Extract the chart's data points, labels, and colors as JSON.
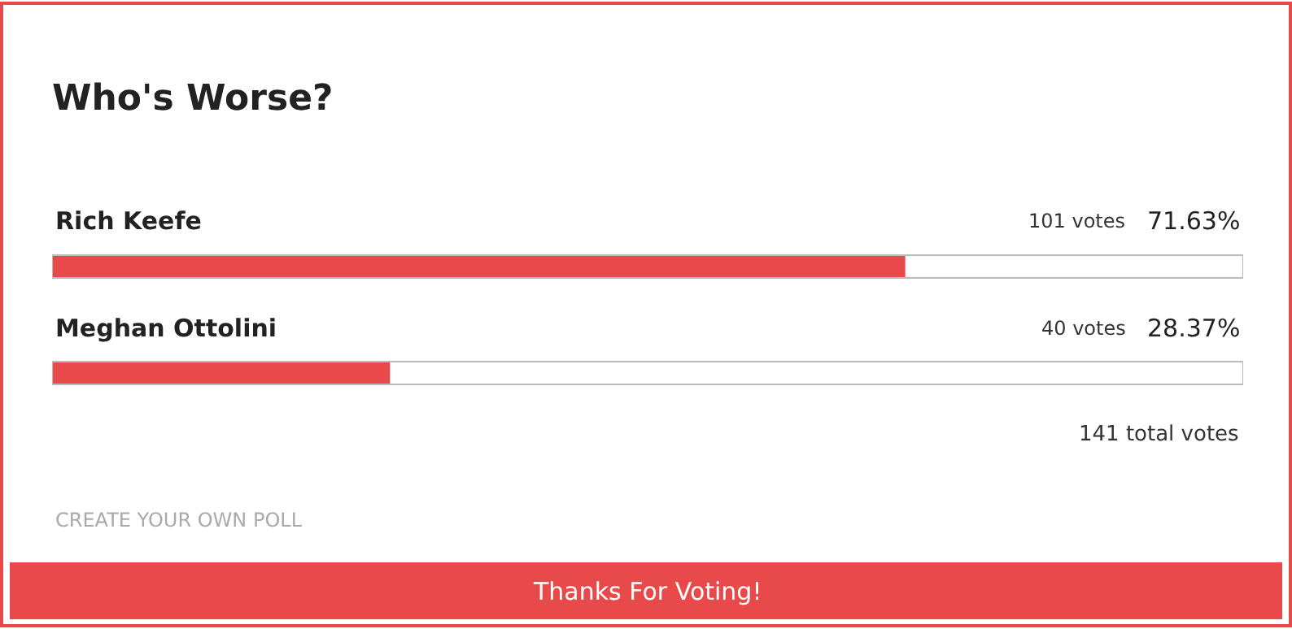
{
  "chart_data": {
    "type": "bar",
    "orientation": "horizontal",
    "title": "Who's Worse?",
    "categories": [
      "Rich Keefe",
      "Meghan Ottolini"
    ],
    "values": [
      71.63,
      28.37
    ],
    "value_labels": [
      "71.63%",
      "28.37%"
    ],
    "color": "#e8494a",
    "xlim": [
      0,
      100
    ],
    "tick_labels": false,
    "legend": false,
    "annotations": [
      "101 votes",
      "40 votes",
      "141 total votes",
      "CREATE YOUR OWN POLL",
      "Thanks For Voting!"
    ]
  }
}
